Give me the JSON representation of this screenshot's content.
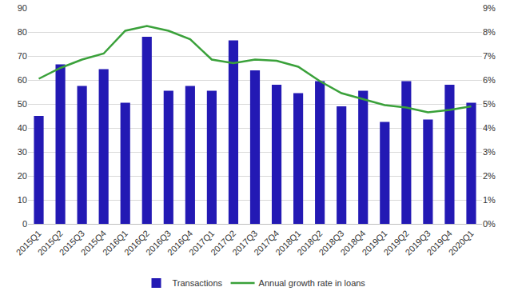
{
  "chart_data": {
    "type": "bar",
    "categories": [
      "2015Q1",
      "2015Q2",
      "2015Q3",
      "2015Q4",
      "2016Q1",
      "2016Q2",
      "2016Q3",
      "2016Q4",
      "2017Q1",
      "2017Q2",
      "2017Q3",
      "2017Q4",
      "2018Q1",
      "2018Q2",
      "2018Q3",
      "2018Q4",
      "2019Q1",
      "2019Q2",
      "2019Q3",
      "2019Q4",
      "2020Q1"
    ],
    "series": [
      {
        "name": "Transactions",
        "type": "bar",
        "color": "#2319b4",
        "values": [
          45,
          66.5,
          57.5,
          64.5,
          50.5,
          78,
          55.5,
          57.5,
          55.5,
          76.5,
          64,
          58,
          54.5,
          59.5,
          49,
          55.5,
          42.5,
          59.5,
          43.5,
          58,
          50.5
        ]
      },
      {
        "name": "Annual growth rate in loans",
        "type": "line",
        "color": "#3aa13a",
        "axis": "y2",
        "values": [
          6.05,
          6.5,
          6.85,
          7.1,
          8.05,
          8.25,
          8.05,
          7.7,
          6.85,
          6.7,
          6.85,
          6.8,
          6.55,
          5.95,
          5.45,
          5.2,
          4.95,
          4.85,
          4.65,
          4.75,
          4.9
        ]
      }
    ],
    "ylim": [
      0,
      90
    ],
    "yticks": [
      0,
      10,
      20,
      30,
      40,
      50,
      60,
      70,
      80,
      90
    ],
    "y2lim": [
      0,
      9
    ],
    "y2ticks": [
      {
        "value": 0,
        "label": "0%"
      },
      {
        "value": 1,
        "label": "1%"
      },
      {
        "value": 2,
        "label": "2%"
      },
      {
        "value": 3,
        "label": "3%"
      },
      {
        "value": 4,
        "label": "4%"
      },
      {
        "value": 5,
        "label": "5%"
      },
      {
        "value": 6,
        "label": "6%"
      },
      {
        "value": 7,
        "label": "7%"
      },
      {
        "value": 8,
        "label": "8%"
      },
      {
        "value": 9,
        "label": "9%"
      }
    ],
    "grid": true,
    "legend": "bottom"
  }
}
